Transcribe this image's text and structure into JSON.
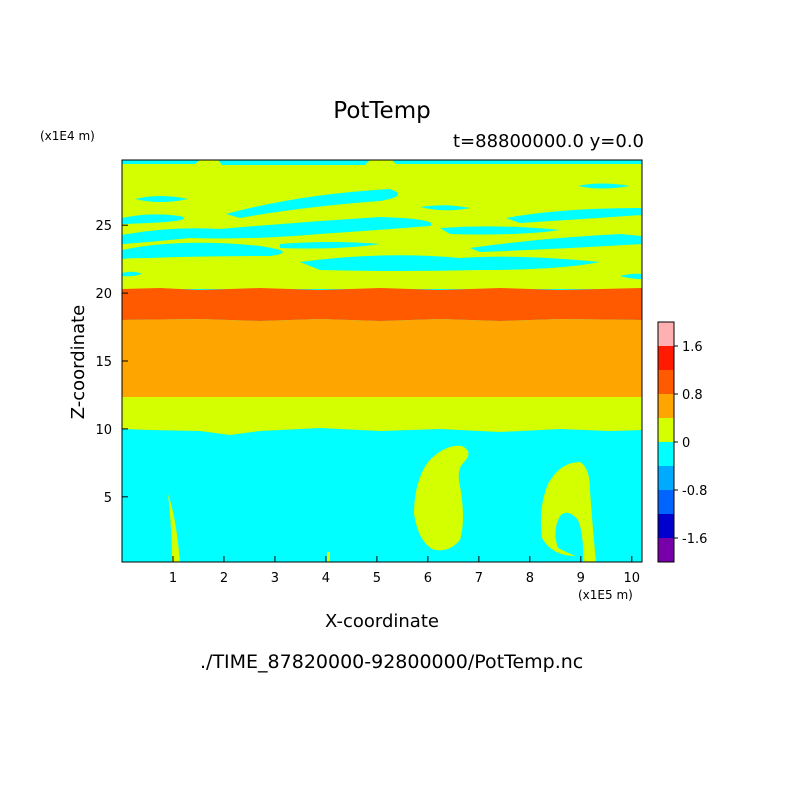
{
  "chart_data": {
    "type": "heatmap",
    "title": "PotTemp",
    "subtitle": "t=88800000.0 y=0.0",
    "xlabel": "X-coordinate",
    "ylabel": "Z-coordinate",
    "x_multiplier": "(x1E5 m)",
    "y_multiplier": "(x1E4 m)",
    "xlim": [
      0,
      10.2
    ],
    "ylim": [
      0.2,
      29.8
    ],
    "x_ticks": [
      "1",
      "2",
      "3",
      "4",
      "5",
      "6",
      "7",
      "8",
      "9",
      "10"
    ],
    "y_ticks": [
      "5",
      "10",
      "15",
      "20",
      "25"
    ],
    "colorbar": {
      "labels": [
        "1.6",
        "0.8",
        "0",
        "-0.8",
        "-1.6"
      ],
      "levels_top_to_bottom": [
        {
          "range": "> 1.6",
          "color": "#ffb0b0"
        },
        {
          "range": "1.2 to 1.6",
          "color": "#ff1a00"
        },
        {
          "range": "0.8 to 1.2",
          "color": "#ff5a00"
        },
        {
          "range": "0.4 to 0.8",
          "color": "#ffa500"
        },
        {
          "range": "0 to 0.4",
          "color": "#d4ff00"
        },
        {
          "range": "-0.4 to 0",
          "color": "#00ffff"
        },
        {
          "range": "-0.8 to -0.4",
          "color": "#00aaff"
        },
        {
          "range": "-1.2 to -0.8",
          "color": "#0064ff"
        },
        {
          "range": "-1.6 to -1.2",
          "color": "#0000cc"
        },
        {
          "range": "< -1.6",
          "color": "#7700aa"
        }
      ]
    },
    "bands_z": [
      {
        "z_from": 0.2,
        "z_to": 10.0,
        "level": "-0.4 to 0"
      },
      {
        "z_from": 10.0,
        "z_to": 12.3,
        "level": "0 to 0.4"
      },
      {
        "z_from": 12.3,
        "z_to": 18.1,
        "level": "0.4 to 0.8"
      },
      {
        "z_from": 18.1,
        "z_to": 20.3,
        "level": "0.8 to 1.2"
      },
      {
        "z_from": 20.3,
        "z_to": 29.8,
        "level": "0 to 0.4 with -0.4 to 0 streaks"
      }
    ],
    "features": [
      {
        "name": "warm plume",
        "x_center": 6.2,
        "z_range": [
          0.9,
          8.7
        ],
        "level": "0 to 0.4"
      },
      {
        "name": "warm plume",
        "x_center": 8.8,
        "z_range": [
          0.5,
          7.5
        ],
        "level": "0 to 0.4"
      },
      {
        "name": "warm filament",
        "x_center": 1.1,
        "z_range": [
          0.2,
          5.1
        ],
        "level": "0 to 0.4"
      }
    ]
  },
  "source_file": "./TIME_87820000-92800000/PotTemp.nc"
}
